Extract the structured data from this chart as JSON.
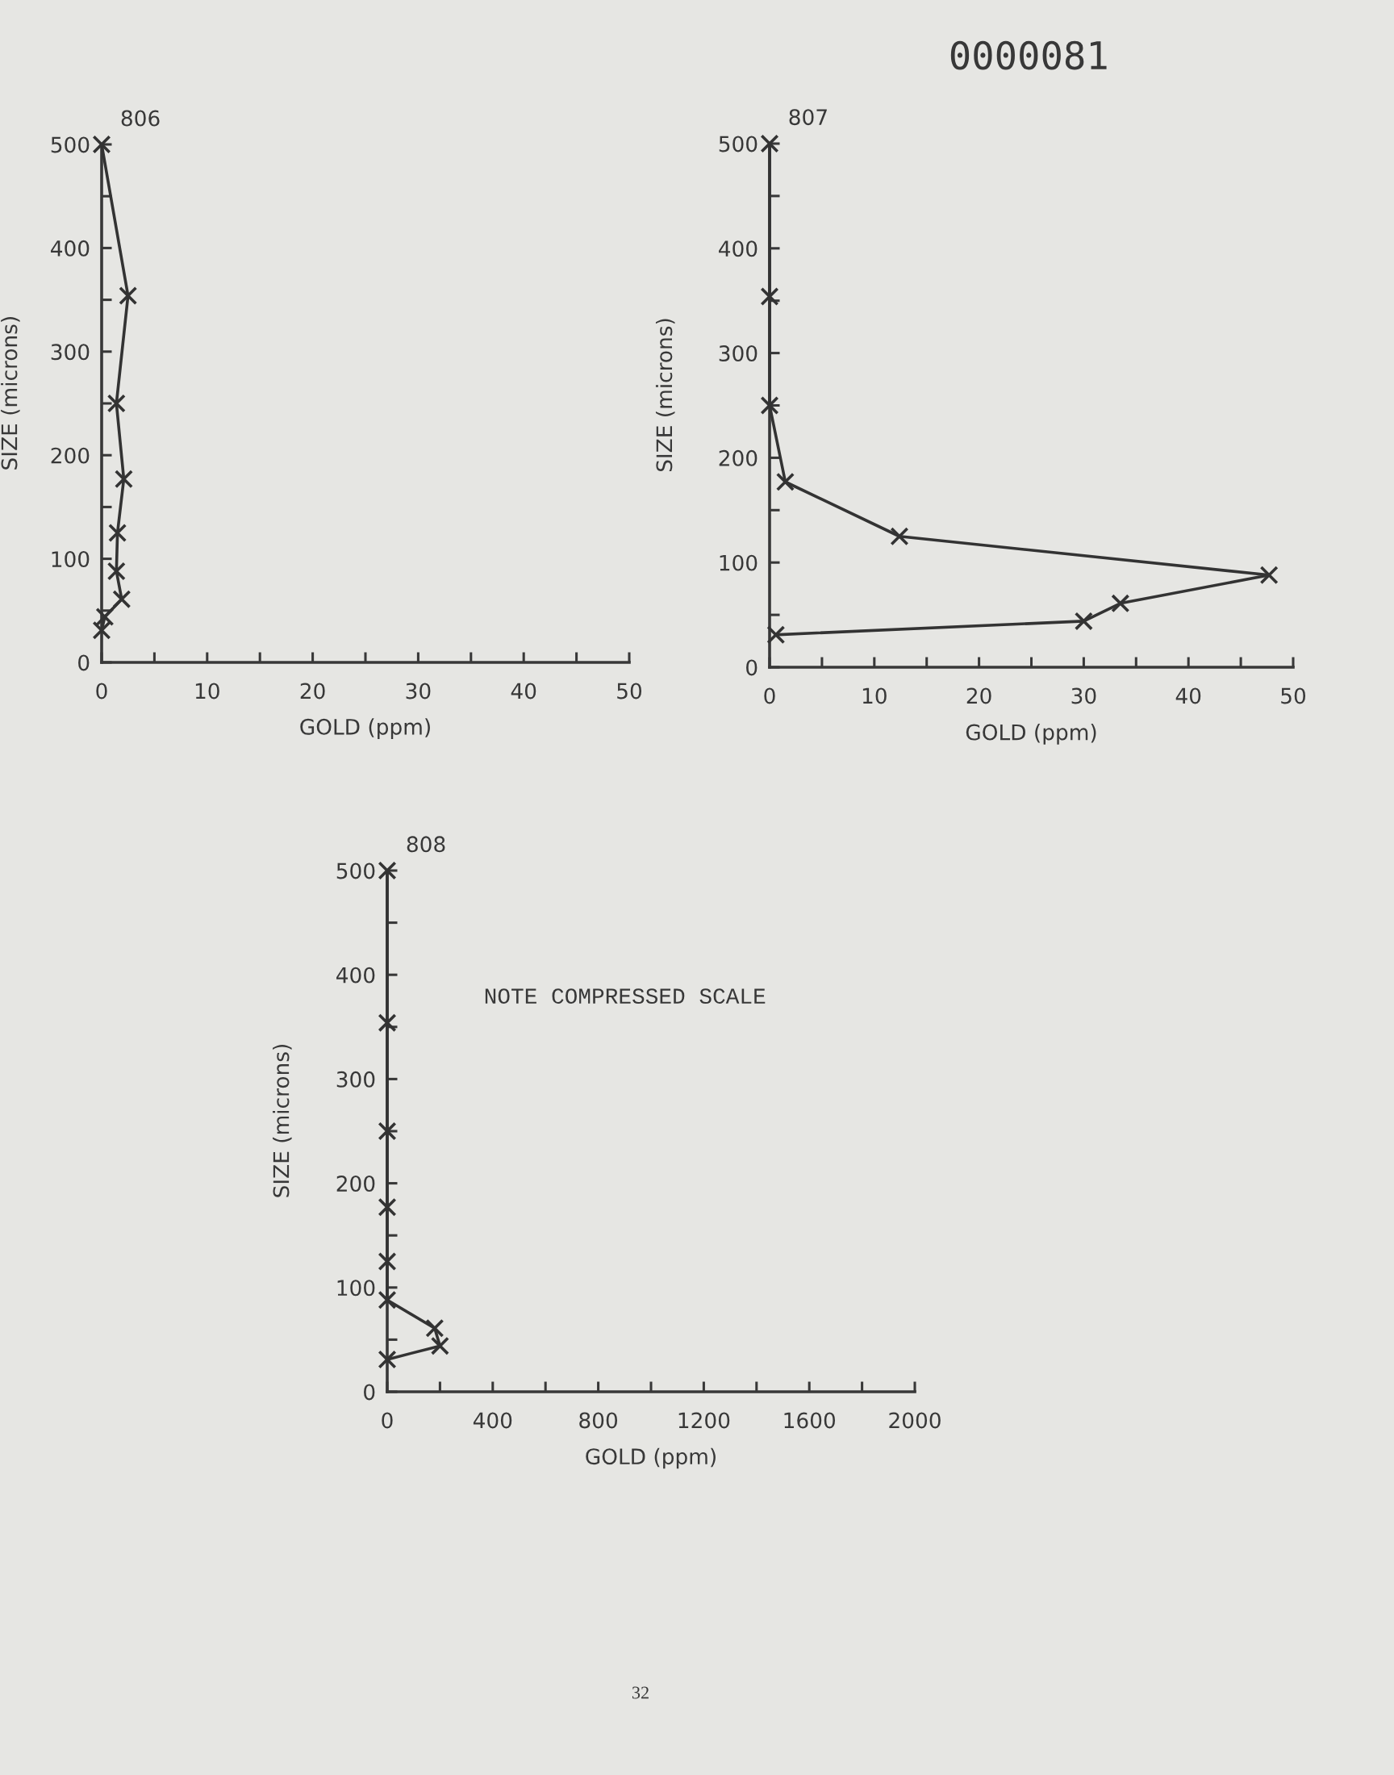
{
  "chart_data": [
    {
      "type": "line",
      "title": "806",
      "xlabel": "GOLD (ppm)",
      "ylabel": "SIZE (microns)",
      "marker": "cross",
      "line_style": "solid",
      "series": [
        {
          "color": "#333333",
          "x": [
            0,
            2.5,
            1.4,
            2.1,
            1.5,
            1.4,
            1.9,
            0.3,
            0
          ],
          "values": [
            500,
            354,
            250,
            177,
            125,
            88,
            61,
            44,
            31
          ]
        }
      ],
      "xlim": [
        0,
        50
      ],
      "ylim": [
        0,
        500
      ],
      "xticks": [
        0,
        {
          "value": 5,
          "label": null
        },
        10,
        {
          "value": 15,
          "label": null
        },
        20,
        {
          "value": 25,
          "label": null
        },
        30,
        {
          "value": 35,
          "label": null
        },
        40,
        {
          "value": 45,
          "label": null
        },
        50
      ],
      "yticks": [
        0,
        {
          "value": 50,
          "label": null
        },
        100,
        {
          "value": 150,
          "label": null
        },
        200,
        {
          "value": 250,
          "label": null
        },
        300,
        {
          "value": 350,
          "label": null
        },
        400,
        {
          "value": 450,
          "label": null
        },
        500
      ]
    },
    {
      "type": "line",
      "title": "807",
      "xlabel": "GOLD (ppm)",
      "ylabel": "SIZE (microns)",
      "marker": "cross",
      "line_style": "solid",
      "series": [
        {
          "color": "#333333",
          "x": [
            0,
            0,
            0,
            1.5,
            12.4,
            47.7,
            33.5,
            30.0,
            0.6
          ],
          "values": [
            500,
            354,
            250,
            177,
            125,
            88,
            61,
            44,
            31
          ]
        }
      ],
      "xlim": [
        0,
        50
      ],
      "ylim": [
        0,
        500
      ],
      "xticks": [
        0,
        {
          "value": 5,
          "label": null
        },
        10,
        {
          "value": 15,
          "label": null
        },
        20,
        {
          "value": 25,
          "label": null
        },
        30,
        {
          "value": 35,
          "label": null
        },
        40,
        {
          "value": 45,
          "label": null
        },
        50
      ],
      "yticks": [
        0,
        {
          "value": 50,
          "label": null
        },
        100,
        {
          "value": 150,
          "label": null
        },
        200,
        {
          "value": 250,
          "label": null
        },
        300,
        {
          "value": 350,
          "label": null
        },
        400,
        {
          "value": 450,
          "label": null
        },
        500
      ],
      "annotations": [
        "0000081"
      ]
    },
    {
      "type": "line",
      "title": "808",
      "xlabel": "GOLD (ppm)",
      "ylabel": "SIZE (microns)",
      "marker": "cross",
      "line_style": "solid",
      "series": [
        {
          "color": "#333333",
          "x": [
            0,
            0,
            0,
            0,
            0,
            0,
            180,
            200,
            0
          ],
          "values": [
            500,
            354,
            250,
            177,
            125,
            88,
            61,
            44,
            31
          ]
        }
      ],
      "xlim": [
        0,
        2000
      ],
      "ylim": [
        0,
        500
      ],
      "xticks": [
        0,
        {
          "value": 200,
          "label": null
        },
        400,
        {
          "value": 600,
          "label": null
        },
        800,
        {
          "value": 1000,
          "label": null
        },
        1200,
        {
          "value": 1400,
          "label": null
        },
        1600,
        {
          "value": 1800,
          "label": null
        },
        2000
      ],
      "yticks": [
        0,
        {
          "value": 50,
          "label": null
        },
        100,
        {
          "value": 150,
          "label": null
        },
        200,
        {
          "value": 250,
          "label": null
        },
        300,
        {
          "value": 350,
          "label": null
        },
        400,
        {
          "value": 450,
          "label": null
        },
        500
      ],
      "annotations": [
        "NOTE COMPRESSED SCALE",
        "32"
      ]
    }
  ]
}
